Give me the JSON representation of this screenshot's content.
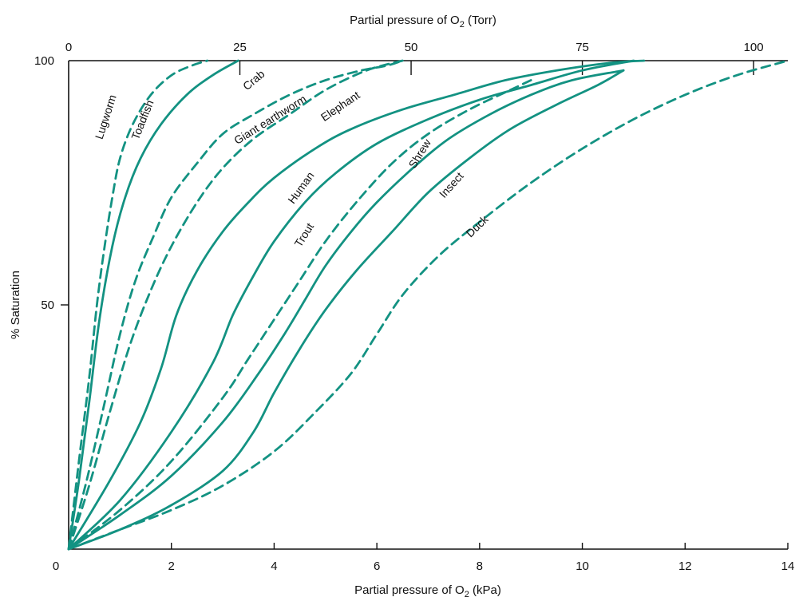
{
  "chart_data": {
    "type": "line",
    "title": "",
    "xlabel": "Partial pressure of O",
    "xlabel_sub": "2",
    "xlabel_unit": " (kPa)",
    "x2label": "Partial pressure of O",
    "x2label_sub": "2",
    "x2label_unit": " (Torr)",
    "ylabel": "% Saturation",
    "xlim": [
      0,
      14
    ],
    "x2lim": [
      0,
      105
    ],
    "ylim": [
      0,
      100
    ],
    "x_ticks": [
      0,
      2,
      4,
      6,
      8,
      10,
      12,
      14
    ],
    "x_tick_labels": [
      "0",
      "2",
      "4",
      "6",
      "8",
      "10",
      "12",
      "14"
    ],
    "x2_ticks": [
      0,
      25,
      50,
      75,
      100
    ],
    "x2_tick_labels": [
      "0",
      "25",
      "50",
      "75",
      "100"
    ],
    "y_ticks": [
      0,
      50,
      100
    ],
    "y_tick_labels": [
      "0",
      "50",
      "100"
    ],
    "grid": false,
    "legend": "none",
    "color": "#139282",
    "series": [
      {
        "name": "Lugworm",
        "style": "dashed",
        "x": [
          0,
          0.2,
          0.4,
          0.55,
          0.7,
          0.85,
          1.0,
          1.25,
          1.6,
          2.0,
          2.4,
          2.7
        ],
        "y": [
          0,
          18,
          35,
          50,
          62,
          72,
          80,
          87,
          93,
          97,
          99,
          100
        ]
      },
      {
        "name": "Toadfish",
        "style": "solid",
        "x": [
          0,
          0.2,
          0.4,
          0.6,
          0.85,
          1.1,
          1.4,
          1.8,
          2.3,
          2.8,
          3.3
        ],
        "y": [
          0,
          14,
          30,
          47,
          62,
          72,
          80,
          87,
          93,
          97,
          100
        ]
      },
      {
        "name": "Crab",
        "style": "dashed",
        "x": [
          0,
          0.35,
          0.7,
          1.0,
          1.3,
          1.65,
          2.0,
          2.5,
          3.0,
          3.6,
          4.3,
          5.0,
          5.7,
          6.2,
          6.5
        ],
        "y": [
          0,
          14,
          30,
          44,
          55,
          64,
          72,
          79,
          85,
          89,
          93,
          96,
          98,
          99,
          100
        ]
      },
      {
        "name": "Giant earthworm",
        "style": "dashed",
        "x": [
          0,
          0.4,
          0.8,
          1.2,
          1.6,
          2.0,
          2.5,
          3.0,
          3.6,
          4.3,
          5.0,
          5.8,
          6.5
        ],
        "y": [
          0,
          13,
          28,
          42,
          53,
          62,
          71,
          78,
          84,
          89,
          94,
          98,
          100
        ]
      },
      {
        "name": "Elephant",
        "style": "solid",
        "x": [
          0,
          0.8,
          1.4,
          1.8,
          2.1,
          2.5,
          3.0,
          3.5,
          4.0,
          4.8,
          5.5,
          6.5,
          7.5,
          8.5,
          9.5,
          10.5,
          11.2
        ],
        "y": [
          0,
          14,
          26,
          37,
          48,
          57,
          65,
          71,
          76,
          82,
          86,
          90,
          93,
          96,
          98,
          99.5,
          100
        ]
      },
      {
        "name": "Human",
        "style": "solid",
        "x": [
          0,
          1.0,
          2.0,
          2.8,
          3.2,
          3.6,
          4.0,
          4.6,
          5.2,
          6.0,
          7.0,
          8.0,
          9.0,
          10.0,
          11.0
        ],
        "y": [
          0,
          10,
          24,
          38,
          48,
          56,
          63,
          71,
          77,
          83,
          88,
          92,
          95,
          98,
          100
        ]
      },
      {
        "name": "Trout",
        "style": "dashed",
        "x": [
          0,
          1.0,
          2.0,
          3.0,
          3.5,
          4.0,
          4.5,
          5.0,
          5.6,
          6.3,
          7.0,
          7.8,
          8.6,
          9.0
        ],
        "y": [
          0,
          8,
          18,
          31,
          39,
          47,
          55,
          63,
          71,
          79,
          85,
          90,
          94,
          96
        ]
      },
      {
        "name": "Shrew",
        "style": "solid",
        "x": [
          0,
          1.0,
          2.0,
          3.0,
          3.7,
          4.2,
          4.6,
          5.0,
          5.5,
          6.0,
          6.7,
          7.4,
          8.2,
          9.0,
          9.8,
          10.8
        ],
        "y": [
          0,
          7,
          15,
          26,
          36,
          44,
          51,
          58,
          65,
          71,
          78,
          84,
          89,
          93,
          96,
          98
        ]
      },
      {
        "name": "Insect",
        "style": "solid",
        "x": [
          0,
          1.0,
          2.0,
          3.0,
          3.6,
          4.0,
          4.5,
          5.0,
          5.6,
          6.3,
          7.0,
          7.8,
          8.6,
          9.5,
          10.3,
          10.8
        ],
        "y": [
          0,
          4,
          9,
          16,
          24,
          32,
          41,
          49,
          57,
          65,
          73,
          80,
          86,
          91,
          95,
          98
        ]
      },
      {
        "name": "Duck",
        "style": "dashed",
        "x": [
          0,
          1.0,
          2.0,
          3.0,
          4.0,
          4.8,
          5.5,
          6.0,
          6.5,
          7.2,
          8.0,
          9.0,
          10.0,
          11.0,
          12.0,
          13.0,
          14.0
        ],
        "y": [
          0,
          4,
          8,
          13,
          20,
          28,
          36,
          44,
          52,
          60,
          67,
          75,
          82,
          88,
          93,
          97,
          100
        ]
      }
    ]
  }
}
